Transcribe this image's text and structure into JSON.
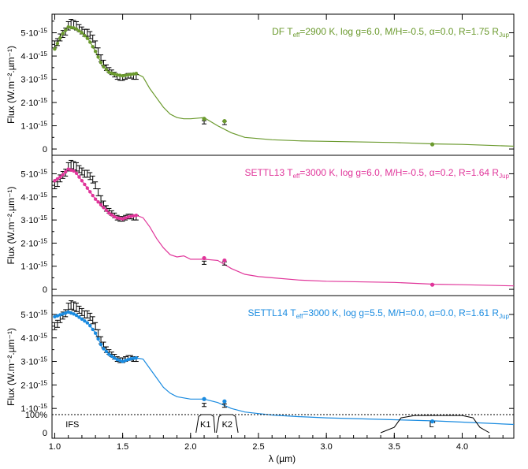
{
  "chart_data": {
    "type": "line",
    "xlabel": "λ (µm)",
    "x_ticks": [
      "1.0",
      "1.5",
      "2.0",
      "2.5",
      "3.0",
      "3.5",
      "4.0"
    ],
    "xlim": [
      0.98,
      4.38
    ],
    "ylabel": "Flux (W.m⁻².µm⁻¹)",
    "y_unit_exponent": "-15",
    "y_ticks": [
      0,
      1,
      2,
      3,
      4,
      5
    ],
    "ylim": [
      -0.1,
      5.8
    ],
    "observed": {
      "x": [
        1.0,
        1.02,
        1.04,
        1.06,
        1.08,
        1.1,
        1.12,
        1.14,
        1.16,
        1.18,
        1.2,
        1.22,
        1.24,
        1.26,
        1.28,
        1.3,
        1.32,
        1.34,
        1.36,
        1.38,
        1.4,
        1.42,
        1.44,
        1.46,
        1.48,
        1.5,
        1.52,
        1.54,
        1.56,
        1.58,
        1.6,
        2.1,
        2.25
      ],
      "y": [
        4.5,
        4.6,
        4.8,
        4.95,
        5.05,
        5.3,
        5.4,
        5.35,
        5.3,
        5.2,
        5.1,
        5.0,
        5.0,
        4.9,
        4.75,
        4.5,
        4.2,
        3.9,
        3.7,
        3.5,
        3.4,
        3.3,
        3.2,
        3.1,
        3.05,
        3.05,
        3.1,
        3.15,
        3.15,
        3.1,
        3.1,
        1.15,
        1.12
      ],
      "err": [
        0.15,
        0.15,
        0.15,
        0.15,
        0.15,
        0.18,
        0.18,
        0.18,
        0.18,
        0.15,
        0.15,
        0.15,
        0.15,
        0.15,
        0.15,
        0.15,
        0.15,
        0.15,
        0.12,
        0.12,
        0.1,
        0.1,
        0.1,
        0.1,
        0.1,
        0.1,
        0.1,
        0.1,
        0.1,
        0.1,
        0.1,
        0.07,
        0.07
      ]
    },
    "panels": [
      {
        "label_parts": [
          "DF T",
          "eff",
          "=2900 K, log g=6.0, M/H=-0.5, α=0.0, R=1.75 R",
          "Jup"
        ],
        "color": "#6b9a2e",
        "model_x": [
          1.0,
          1.05,
          1.1,
          1.15,
          1.2,
          1.25,
          1.3,
          1.35,
          1.4,
          1.45,
          1.5,
          1.55,
          1.6,
          1.65,
          1.7,
          1.75,
          1.8,
          1.85,
          1.9,
          1.95,
          2.0,
          2.1,
          2.2,
          2.3,
          2.4,
          2.5,
          2.6,
          2.8,
          3.0,
          3.5,
          3.8,
          4.0,
          4.38
        ],
        "model_y": [
          4.3,
          4.9,
          5.25,
          5.2,
          5.0,
          4.7,
          4.2,
          3.6,
          3.3,
          3.2,
          3.15,
          3.2,
          3.25,
          3.1,
          2.6,
          2.2,
          1.8,
          1.5,
          1.35,
          1.3,
          1.3,
          1.35,
          1.0,
          0.7,
          0.5,
          0.45,
          0.4,
          0.35,
          0.33,
          0.28,
          0.22,
          0.2,
          0.12
        ],
        "synthetic_x": [
          2.1,
          2.25,
          3.78
        ],
        "synthetic_y": [
          1.3,
          1.2,
          0.2
        ]
      },
      {
        "label_parts": [
          "SETTL13  T",
          "eff",
          "=3000 K, log g=6.0, M/H=-0.5, α=0.2, R=1.64 R",
          "Jup"
        ],
        "color": "#e0359a",
        "model_x": [
          1.0,
          1.05,
          1.1,
          1.15,
          1.2,
          1.25,
          1.3,
          1.35,
          1.4,
          1.45,
          1.5,
          1.55,
          1.6,
          1.65,
          1.7,
          1.75,
          1.8,
          1.85,
          1.9,
          1.95,
          2.0,
          2.1,
          2.2,
          2.3,
          2.4,
          2.5,
          2.6,
          2.8,
          3.0,
          3.5,
          3.8,
          4.0,
          4.38
        ],
        "model_y": [
          4.7,
          4.9,
          5.2,
          5.1,
          4.7,
          4.3,
          3.9,
          3.6,
          3.3,
          3.1,
          3.05,
          3.15,
          3.2,
          3.1,
          2.7,
          2.2,
          1.8,
          1.5,
          1.4,
          1.45,
          1.3,
          1.3,
          1.25,
          0.9,
          0.65,
          0.55,
          0.5,
          0.4,
          0.35,
          0.3,
          0.22,
          0.2,
          0.15
        ],
        "synthetic_x": [
          2.1,
          2.25,
          3.78
        ],
        "synthetic_y": [
          1.35,
          1.25,
          0.2
        ]
      },
      {
        "label_parts": [
          "SETTL14  T",
          "eff",
          "=3000 K, log g=5.5, M/H=0.0, α=0.0, R=1.61 R",
          "Jup"
        ],
        "color": "#1a8be0",
        "model_x": [
          1.0,
          1.05,
          1.1,
          1.15,
          1.2,
          1.25,
          1.3,
          1.35,
          1.4,
          1.45,
          1.5,
          1.55,
          1.6,
          1.65,
          1.7,
          1.75,
          1.8,
          1.85,
          1.9,
          1.95,
          2.0,
          2.1,
          2.2,
          2.3,
          2.4,
          2.5,
          2.6,
          2.8,
          3.0,
          3.5,
          3.8,
          4.0,
          4.38
        ],
        "model_y": [
          4.9,
          5.0,
          5.1,
          5.0,
          4.8,
          4.6,
          4.2,
          3.6,
          3.3,
          3.1,
          3.0,
          3.1,
          3.15,
          3.1,
          2.7,
          2.3,
          1.9,
          1.65,
          1.5,
          1.45,
          1.4,
          1.4,
          1.25,
          1.0,
          0.85,
          0.78,
          0.72,
          0.65,
          0.6,
          0.52,
          0.47,
          0.42,
          0.32
        ],
        "synthetic_x": [
          2.1,
          2.25,
          3.78
        ],
        "synthetic_y": [
          1.4,
          1.3,
          0.45
        ]
      }
    ],
    "filters": {
      "y_tick_labels": [
        "0",
        "100%"
      ],
      "labels": [
        "IFS",
        "K1",
        "K2",
        "L'"
      ],
      "label_x": [
        1.13,
        2.11,
        2.27,
        3.78
      ],
      "curves": [
        {
          "x": [
            2.04,
            2.06,
            2.08,
            2.15,
            2.17,
            2.18
          ],
          "y": [
            0,
            0.9,
            1.0,
            1.0,
            0.9,
            0
          ]
        },
        {
          "x": [
            2.19,
            2.21,
            2.23,
            2.31,
            2.33,
            2.35
          ],
          "y": [
            0,
            0.9,
            1.0,
            1.0,
            0.9,
            0
          ]
        },
        {
          "x": [
            3.4,
            3.5,
            3.55,
            3.65,
            4.0,
            4.08,
            4.13,
            4.2
          ],
          "y": [
            0,
            0.3,
            0.82,
            0.95,
            0.95,
            0.82,
            0.3,
            0
          ]
        }
      ]
    }
  }
}
